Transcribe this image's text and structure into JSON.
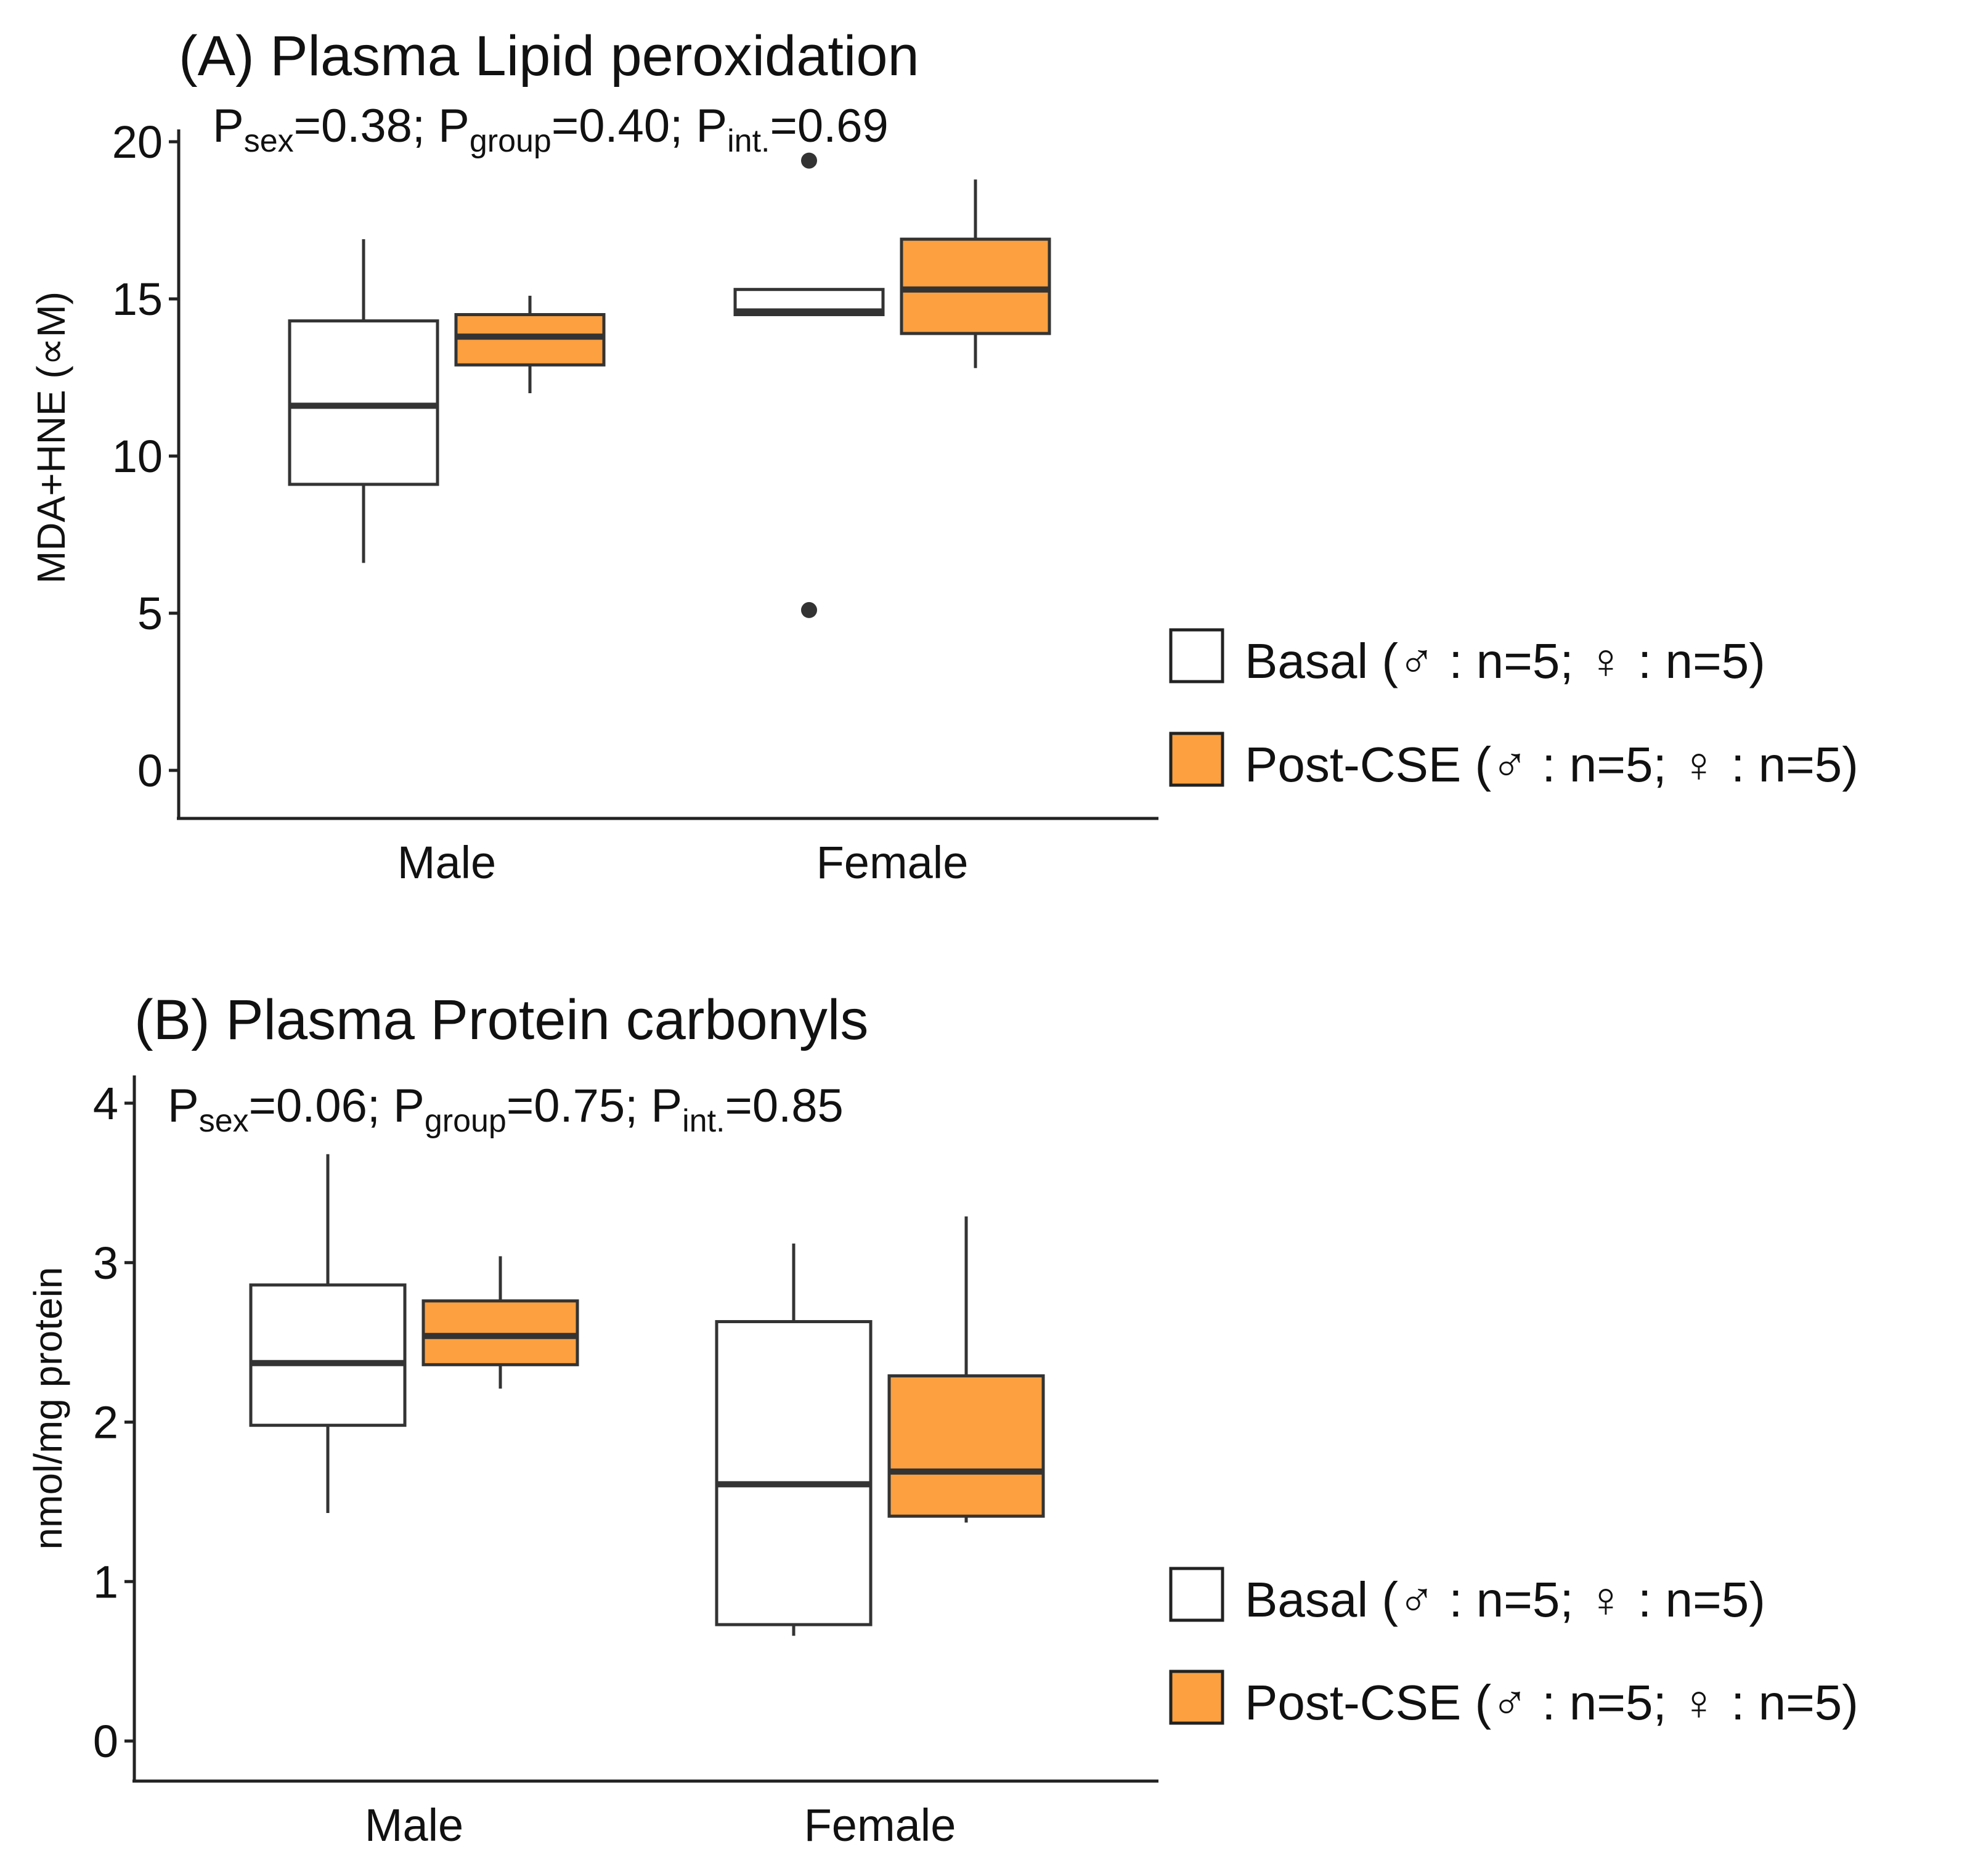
{
  "chart_data": [
    {
      "type": "box",
      "title": "(A) Plasma Lipid peroxidation",
      "stats": {
        "sex": {
          "label": "sex",
          "value": "=0.38; "
        },
        "group": {
          "label": "group",
          "value": "=0.40; "
        },
        "int": {
          "label": "int.",
          "value": "=0.69"
        }
      },
      "ylabel": "MDA+HNE (∝M)",
      "ylim": [
        0,
        20
      ],
      "yticks": [
        0,
        5,
        10,
        15,
        20
      ],
      "ytick_labels": [
        "0",
        "5",
        "10",
        "15",
        "20"
      ],
      "categories": [
        "Male",
        "Female"
      ],
      "series": [
        {
          "name": "Basal",
          "color": "#ffffff",
          "boxes": [
            {
              "whisker_low": 6.6,
              "q1": 9.1,
              "median": 11.6,
              "q3": 14.3,
              "whisker_high": 16.9,
              "outliers": []
            },
            {
              "whisker_low": 14.5,
              "q1": 14.5,
              "median": 14.6,
              "q3": 15.3,
              "whisker_high": 15.3,
              "outliers": [
                19.4,
                5.1
              ]
            }
          ]
        },
        {
          "name": "Post-CSE",
          "color": "#fca040",
          "boxes": [
            {
              "whisker_low": 12.0,
              "q1": 12.9,
              "median": 13.8,
              "q3": 14.5,
              "whisker_high": 15.1,
              "outliers": []
            },
            {
              "whisker_low": 12.8,
              "q1": 13.9,
              "median": 15.3,
              "q3": 16.9,
              "whisker_high": 18.8,
              "outliers": []
            }
          ]
        }
      ],
      "legend": {
        "position": "right",
        "items": [
          {
            "name": "Basal",
            "text": "Basal (♂ : n=5; ♀ : n=5)",
            "color": "#ffffff"
          },
          {
            "name": "Post-CSE",
            "text": "Post-CSE (♂ : n=5; ♀ : n=5)",
            "color": "#fca040"
          }
        ]
      }
    },
    {
      "type": "box",
      "title": "(B)  Plasma Protein carbonyls",
      "stats": {
        "sex": {
          "label": "sex",
          "value": "=0.06; "
        },
        "group": {
          "label": "group",
          "value": "=0.75; "
        },
        "int": {
          "label": "int.",
          "value": "=0.85"
        }
      },
      "ylabel": "nmol/mg protein",
      "ylim": [
        0,
        4
      ],
      "yticks": [
        0,
        1,
        2,
        3,
        4
      ],
      "ytick_labels": [
        "0",
        "1",
        "2",
        "3",
        "4"
      ],
      "categories": [
        "Male",
        "Female"
      ],
      "series": [
        {
          "name": "Basal",
          "color": "#ffffff",
          "boxes": [
            {
              "whisker_low": 1.43,
              "q1": 1.98,
              "median": 2.37,
              "q3": 2.86,
              "whisker_high": 3.68,
              "outliers": []
            },
            {
              "whisker_low": 0.66,
              "q1": 0.73,
              "median": 1.61,
              "q3": 2.63,
              "whisker_high": 3.12,
              "outliers": []
            }
          ]
        },
        {
          "name": "Post-CSE",
          "color": "#fca040",
          "boxes": [
            {
              "whisker_low": 2.21,
              "q1": 2.36,
              "median": 2.54,
              "q3": 2.76,
              "whisker_high": 3.04,
              "outliers": []
            },
            {
              "whisker_low": 1.37,
              "q1": 1.41,
              "median": 1.69,
              "q3": 2.29,
              "whisker_high": 3.29,
              "outliers": []
            }
          ]
        }
      ],
      "legend": {
        "position": "right",
        "items": [
          {
            "name": "Basal",
            "text": "Basal (♂ : n=5; ♀ : n=5)",
            "color": "#ffffff"
          },
          {
            "name": "Post-CSE",
            "text": "Post-CSE (♂ : n=5; ♀ : n=5)",
            "color": "#fca040"
          }
        ]
      }
    }
  ]
}
